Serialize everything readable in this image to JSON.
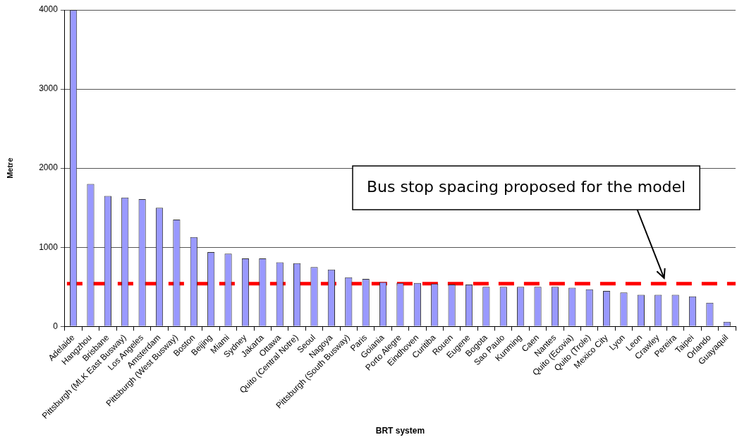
{
  "chart_data": {
    "type": "bar",
    "xlabel": "BRT system",
    "ylabel": "Metre",
    "categories": [
      "Adelaide",
      "Hangzhou",
      "Brisbane",
      "Pittsburgh (MLK East Busway)",
      "Los Angeles",
      "Amsterdam",
      "Pittsburgh (West Busway)",
      "Boston",
      "Beijing",
      "Miami",
      "Sydney",
      "Jakarta",
      "Ottawa",
      "Quito (Central Notre)",
      "Seoul",
      "Nagoya",
      "Pittsburgh (South Busway)",
      "Paris",
      "Goiania",
      "Porto Alegre",
      "Eindhoven",
      "Curitiba",
      "Rouen",
      "Eugene",
      "Bogota",
      "Sao Paulo",
      "Kunming",
      "Caen",
      "Nantes",
      "Quito (Ecovia)",
      "Quito (Trole)",
      "Mexico City",
      "Lyon",
      "Leon",
      "Crawley",
      "Pereira",
      "Taipei",
      "Orlando",
      "Guayaquil"
    ],
    "values": [
      4000,
      1800,
      1650,
      1630,
      1610,
      1500,
      1350,
      1130,
      940,
      920,
      860,
      860,
      810,
      800,
      750,
      720,
      620,
      600,
      560,
      550,
      550,
      540,
      530,
      530,
      500,
      500,
      500,
      500,
      500,
      490,
      470,
      450,
      430,
      400,
      400,
      400,
      380,
      300,
      60
    ],
    "color": "#9999ff",
    "ylim": [
      0,
      4000
    ],
    "yticks": [
      0,
      1000,
      2000,
      3000,
      4000
    ],
    "grid": "y",
    "legend": false,
    "ref_lines": [
      {
        "axis": "y",
        "value": 540,
        "label": "Bus stop spacing proposed for the model",
        "color": "#ff0000",
        "line_style": "dashed"
      }
    ]
  }
}
